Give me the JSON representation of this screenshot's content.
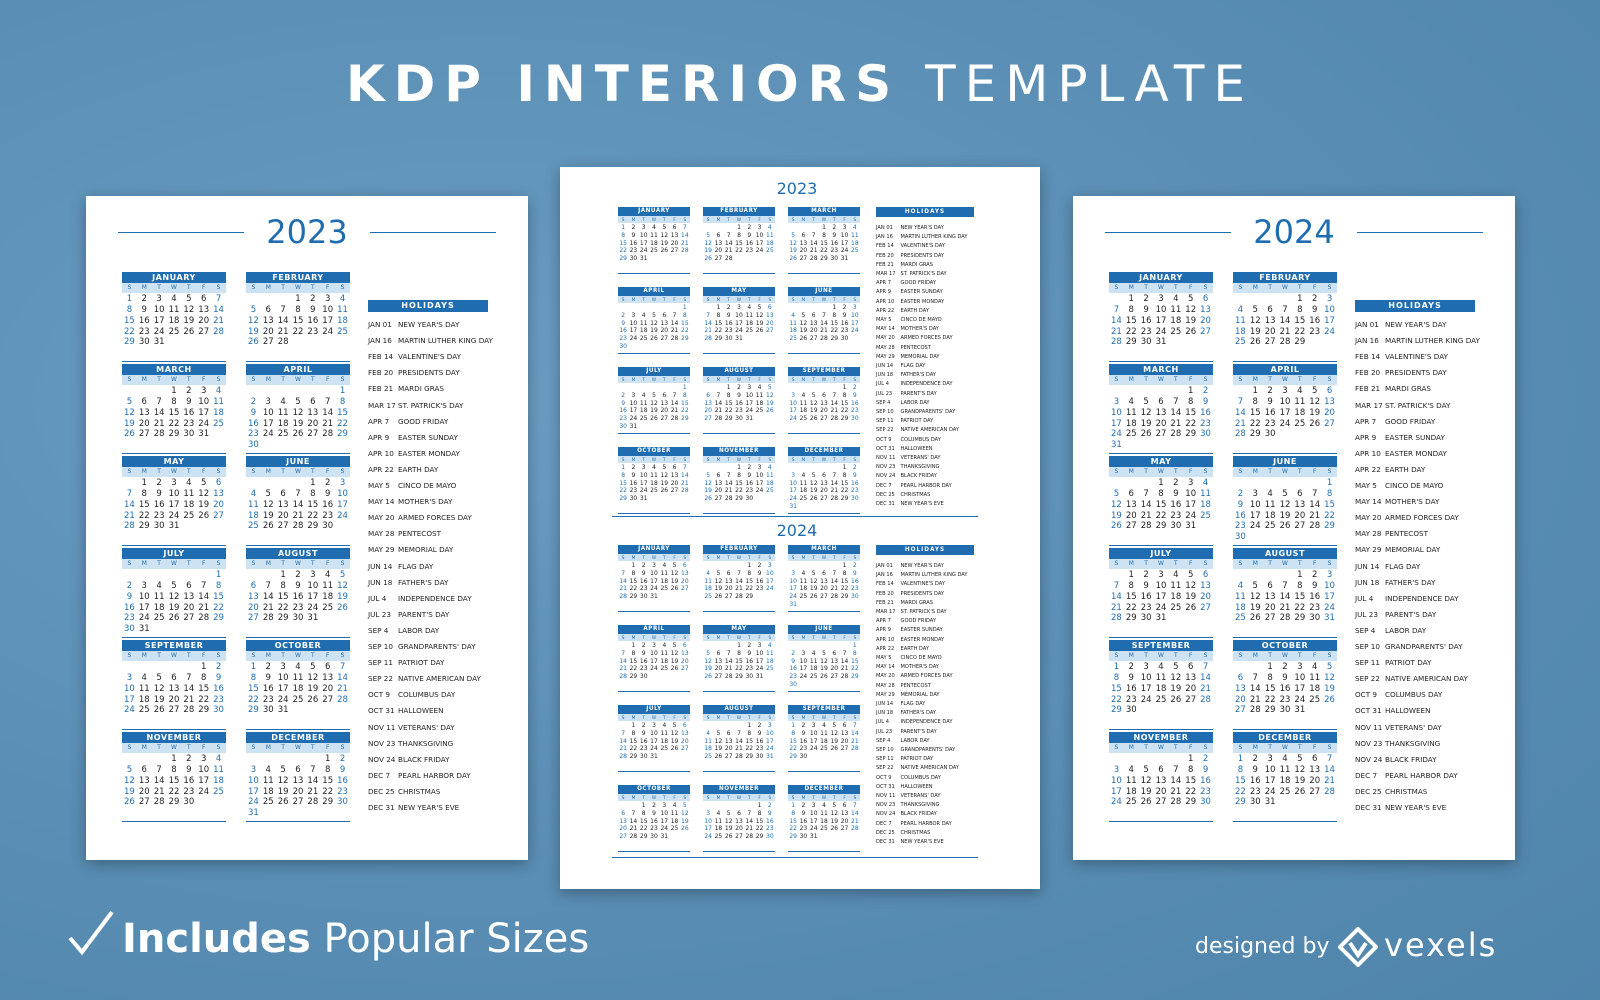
{
  "header": {
    "bold": "KDP INTERIORS",
    "light": "TEMPLATE"
  },
  "footer": {
    "bold": "Includes",
    "rest": "Popular Sizes",
    "credit": "designed by",
    "brand": "vexels"
  },
  "months": [
    "JANUARY",
    "FEBRUARY",
    "MARCH",
    "APRIL",
    "MAY",
    "JUNE",
    "JULY",
    "AUGUST",
    "SEPTEMBER",
    "OCTOBER",
    "NOVEMBER",
    "DECEMBER"
  ],
  "weekdays": [
    "S",
    "M",
    "T",
    "W",
    "T",
    "F",
    "S"
  ],
  "day_numbers": [
    1,
    2,
    3,
    4,
    5,
    6,
    7,
    8,
    9,
    10,
    11,
    12,
    13,
    14,
    15,
    16,
    17,
    18,
    19,
    20,
    21,
    22,
    23,
    24,
    25,
    26,
    27,
    28,
    29,
    30,
    31
  ],
  "calendars": [
    {
      "year": "2023",
      "months": [
        {
          "offset": 0,
          "days": 31
        },
        {
          "offset": 3,
          "days": 28
        },
        {
          "offset": 3,
          "days": 31
        },
        {
          "offset": 6,
          "days": 30
        },
        {
          "offset": 1,
          "days": 31
        },
        {
          "offset": 4,
          "days": 30
        },
        {
          "offset": 6,
          "days": 31
        },
        {
          "offset": 2,
          "days": 31
        },
        {
          "offset": 5,
          "days": 30
        },
        {
          "offset": 0,
          "days": 31
        },
        {
          "offset": 3,
          "days": 30
        },
        {
          "offset": 5,
          "days": 31
        }
      ]
    },
    {
      "year": "2024",
      "months": [
        {
          "offset": 1,
          "days": 31
        },
        {
          "offset": 4,
          "days": 29
        },
        {
          "offset": 5,
          "days": 31
        },
        {
          "offset": 1,
          "days": 30
        },
        {
          "offset": 3,
          "days": 31
        },
        {
          "offset": 6,
          "days": 30
        },
        {
          "offset": 1,
          "days": 31
        },
        {
          "offset": 4,
          "days": 31
        },
        {
          "offset": 0,
          "days": 30
        },
        {
          "offset": 2,
          "days": 31
        },
        {
          "offset": 5,
          "days": 30
        },
        {
          "offset": 0,
          "days": 31
        }
      ]
    }
  ],
  "holidays_title": "HOLIDAYS",
  "holidays": [
    {
      "date": "JAN 01",
      "name": "NEW YEAR'S DAY"
    },
    {
      "date": "JAN 16",
      "name": "MARTIN LUTHER KING DAY"
    },
    {
      "date": "FEB 14",
      "name": "VALENTINE'S DAY"
    },
    {
      "date": "FEB 20",
      "name": "PRESIDENTS DAY"
    },
    {
      "date": "FEB 21",
      "name": "MARDI GRAS"
    },
    {
      "date": "MAR 17",
      "name": "ST. PATRICK'S DAY"
    },
    {
      "date": "APR 7",
      "name": "GOOD FRIDAY"
    },
    {
      "date": "APR 9",
      "name": "EASTER SUNDAY"
    },
    {
      "date": "APR 10",
      "name": "EASTER MONDAY"
    },
    {
      "date": "APR 22",
      "name": "EARTH DAY"
    },
    {
      "date": "MAY 5",
      "name": "CINCO DE MAYO"
    },
    {
      "date": "MAY 14",
      "name": "MOTHER'S DAY"
    },
    {
      "date": "MAY 20",
      "name": "ARMED FORCES DAY"
    },
    {
      "date": "MAY 28",
      "name": "PENTECOST"
    },
    {
      "date": "MAY 29",
      "name": "MEMORIAL DAY"
    },
    {
      "date": "JUN 14",
      "name": "FLAG DAY"
    },
    {
      "date": "JUN 18",
      "name": "FATHER'S DAY"
    },
    {
      "date": "JUL 4",
      "name": "INDEPENDENCE DAY"
    },
    {
      "date": "JUL 23",
      "name": "PARENT'S DAY"
    },
    {
      "date": "SEP 4",
      "name": "LABOR DAY"
    },
    {
      "date": "SEP 10",
      "name": "GRANDPARENTS' DAY"
    },
    {
      "date": "SEP 11",
      "name": "PATRIOT DAY"
    },
    {
      "date": "SEP 22",
      "name": "NATIVE AMERICAN DAY"
    },
    {
      "date": "OCT 9",
      "name": "COLUMBUS DAY"
    },
    {
      "date": "OCT 31",
      "name": "HALLOWEEN"
    },
    {
      "date": "NOV 11",
      "name": "VETERANS' DAY"
    },
    {
      "date": "NOV 23",
      "name": "THANKSGIVING"
    },
    {
      "date": "NOV 24",
      "name": "BLACK FRIDAY"
    },
    {
      "date": "DEC 7",
      "name": "PEARL HARBOR DAY"
    },
    {
      "date": "DEC 25",
      "name": "CHRISTMAS"
    },
    {
      "date": "DEC 31",
      "name": "NEW YEAR'S EVE"
    }
  ]
}
